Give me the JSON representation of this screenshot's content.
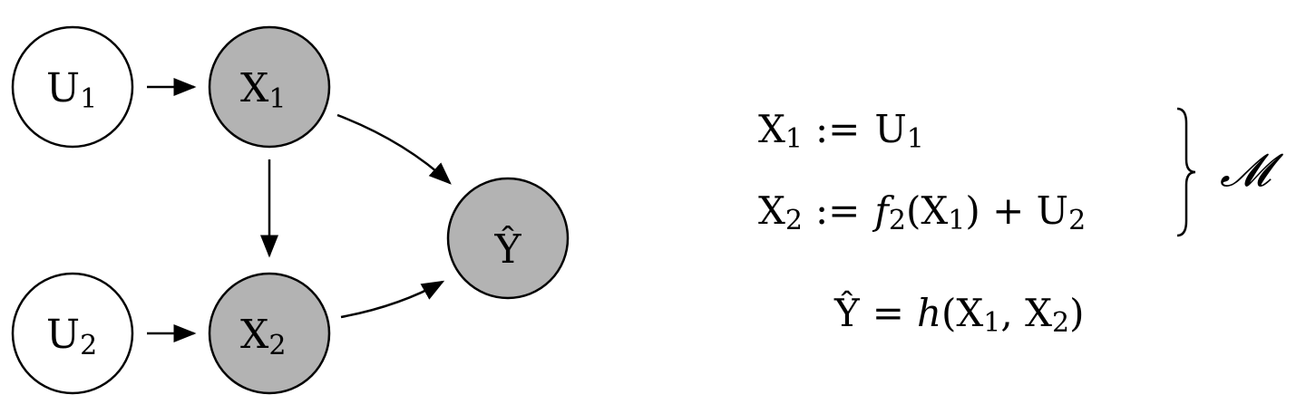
{
  "colors": {
    "observed_fill": "#b3b3b3",
    "latent_fill": "#ffffff",
    "stroke": "#000000"
  },
  "nodes": {
    "u1": {
      "main": "U",
      "sub": "1"
    },
    "x1": {
      "main": "X",
      "sub": "1"
    },
    "u2": {
      "main": "U",
      "sub": "2"
    },
    "x2": {
      "main": "X",
      "sub": "2"
    },
    "yhat": {
      "main": "Ŷ"
    }
  },
  "equations": {
    "eq1": {
      "lhs_main": "X",
      "lhs_sub": "1",
      "op": ":=",
      "rhs_main": "U",
      "rhs_sub": "1"
    },
    "eq2": {
      "lhs_main": "X",
      "lhs_sub": "2",
      "op": ":=",
      "func": "f",
      "func_sub": "2",
      "open": "(X",
      "arg_sub": "1",
      "mid": ") + U",
      "end_sub": "2"
    },
    "eq3": {
      "lhs": "Ŷ",
      "op": "=",
      "func": "h",
      "open": "(X",
      "sub1": "1",
      "comma": ", X",
      "sub2": "2",
      "close": ")"
    },
    "model_label": "𝓜"
  }
}
